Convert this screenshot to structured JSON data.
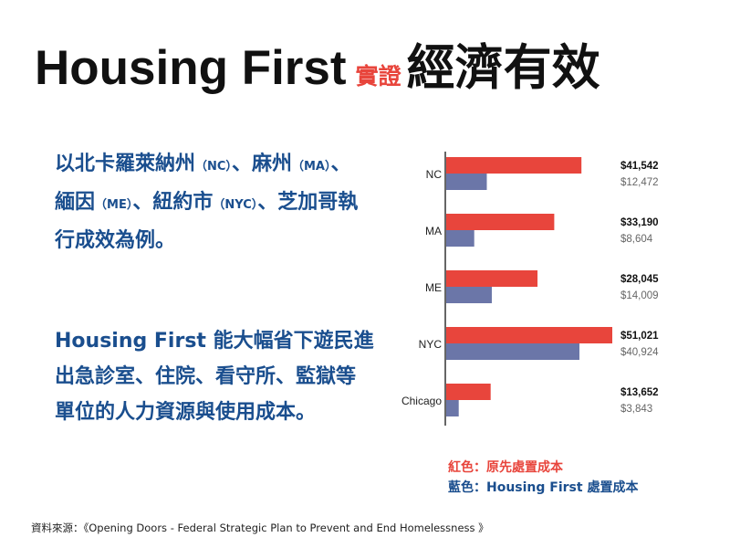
{
  "title": {
    "english": "Housing First",
    "red_part": "實證",
    "big_part": "經濟有效"
  },
  "paragraph1": {
    "p1": "以北卡羅萊納州",
    "nc": "（NC）",
    "p2": "、麻州",
    "ma": "（MA）",
    "p3": "、緬因",
    "me": "（ME）",
    "p4": "、紐約市",
    "nyc": "（NYC）",
    "p5": "、芝加哥執行成效為例。"
  },
  "paragraph2": "Housing First 能大幅省下遊民進出急診室、住院、看守所、監獄等單位的人力資源與使用成本。",
  "chart_data": {
    "type": "bar",
    "orientation": "horizontal",
    "categories": [
      "NC",
      "MA",
      "ME",
      "NYC",
      "Chicago"
    ],
    "series": [
      {
        "name": "原先處置成本",
        "color": "#e8453c",
        "values": [
          41542,
          33190,
          28045,
          51021,
          13652
        ],
        "labels": [
          "$41,542",
          "$33,190",
          "$28,045",
          "$51,021",
          "$13,652"
        ]
      },
      {
        "name": "Housing First 處置成本",
        "color": "#6b76a8",
        "values": [
          12472,
          8604,
          14009,
          40924,
          3843
        ],
        "labels": [
          "$12,472",
          "$8,604",
          "$14,009",
          "$40,924",
          "$3,843"
        ]
      }
    ],
    "xlim": [
      0,
      55000
    ],
    "grid": false
  },
  "legend": {
    "red": "紅色：原先處置成本",
    "blue": "藍色：Housing First 處置成本"
  },
  "source": "資料來源：《Opening Doors - Federal Strategic Plan to Prevent and End Homelessness 》"
}
